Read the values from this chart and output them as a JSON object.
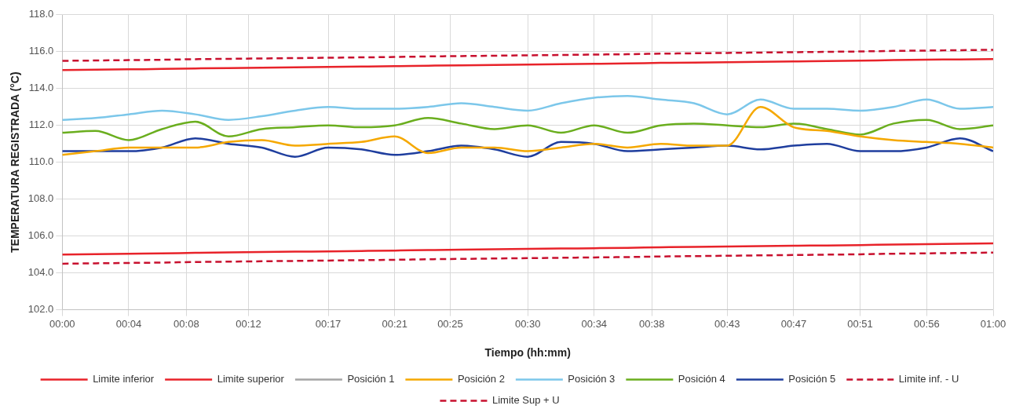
{
  "chart_data": {
    "type": "line",
    "xlabel": "Tiempo (hh:mm)",
    "ylabel": "TEMPERATURA REGISTRADA (°C)",
    "x": [
      0,
      0.0357,
      0.0714,
      0.1071,
      0.1429,
      0.1786,
      0.2143,
      0.25,
      0.2857,
      0.3214,
      0.3571,
      0.3929,
      0.4286,
      0.4643,
      0.5,
      0.5357,
      0.5714,
      0.6071,
      0.6429,
      0.6786,
      0.7143,
      0.75,
      0.7857,
      0.8214,
      0.8571,
      0.8929,
      0.9286,
      0.9643,
      1
    ],
    "series": [
      {
        "name": "Limite inferior",
        "color": "#e8232a",
        "values": [
          105.0,
          105.02,
          105.04,
          105.06,
          105.09,
          105.11,
          105.13,
          105.15,
          105.17,
          105.19,
          105.21,
          105.24,
          105.26,
          105.28,
          105.3,
          105.32,
          105.34,
          105.36,
          105.39,
          105.41,
          105.43,
          105.45,
          105.47,
          105.49,
          105.51,
          105.54,
          105.56,
          105.58,
          105.6
        ]
      },
      {
        "name": "Limite superior",
        "color": "#e8232a",
        "values": [
          115.0,
          115.02,
          115.04,
          115.06,
          115.09,
          115.11,
          115.13,
          115.15,
          115.17,
          115.19,
          115.21,
          115.24,
          115.26,
          115.28,
          115.3,
          115.32,
          115.34,
          115.36,
          115.39,
          115.41,
          115.43,
          115.45,
          115.47,
          115.49,
          115.51,
          115.54,
          115.56,
          115.58,
          115.6
        ]
      },
      {
        "name": "Posición 1",
        "color": "#a5a5a5",
        "values": [
          null,
          null,
          null,
          null,
          null,
          null,
          null,
          null,
          null,
          null,
          null,
          null,
          null,
          null,
          null,
          null,
          null,
          null,
          null,
          null,
          null,
          null,
          null,
          null,
          null,
          null,
          null,
          null,
          null
        ]
      },
      {
        "name": "Posición 2",
        "color": "#f5a800",
        "values": [
          110.4,
          110.6,
          110.8,
          110.8,
          110.8,
          111.1,
          111.2,
          110.9,
          111.0,
          111.1,
          111.4,
          110.5,
          110.8,
          110.8,
          110.6,
          110.8,
          111.0,
          110.8,
          111.0,
          110.9,
          110.9,
          113.0,
          111.9,
          111.7,
          111.4,
          111.2,
          111.1,
          111.0,
          110.8
        ]
      },
      {
        "name": "Posición 3",
        "color": "#7cc7ea",
        "values": [
          112.3,
          112.4,
          112.6,
          112.8,
          112.6,
          112.3,
          112.5,
          112.8,
          113.0,
          112.9,
          112.9,
          113.0,
          113.2,
          113.0,
          112.8,
          113.2,
          113.5,
          113.6,
          113.4,
          113.2,
          112.6,
          113.4,
          112.9,
          112.9,
          112.8,
          113.0,
          113.4,
          112.9,
          113.0
        ]
      },
      {
        "name": "Posición 4",
        "color": "#6aae1e",
        "values": [
          111.6,
          111.7,
          111.2,
          111.8,
          112.2,
          111.4,
          111.8,
          111.9,
          112.0,
          111.9,
          112.0,
          112.4,
          112.1,
          111.8,
          112.0,
          111.6,
          112.0,
          111.6,
          112.0,
          112.1,
          112.0,
          111.9,
          112.1,
          111.8,
          111.5,
          112.1,
          112.3,
          111.8,
          112.0
        ]
      },
      {
        "name": "Posición 5",
        "color": "#1f3e9e",
        "values": [
          110.6,
          110.6,
          110.6,
          110.8,
          111.3,
          111.0,
          110.8,
          110.3,
          110.8,
          110.7,
          110.4,
          110.6,
          110.9,
          110.7,
          110.3,
          111.1,
          111.0,
          110.6,
          110.7,
          110.8,
          110.9,
          110.7,
          110.9,
          111.0,
          110.6,
          110.6,
          110.8,
          111.3,
          110.6
        ]
      },
      {
        "name": "Limite inf. - U",
        "color": "#c8102e",
        "line_style": "dashed",
        "values": [
          104.5,
          104.52,
          104.54,
          104.56,
          104.59,
          104.61,
          104.63,
          104.65,
          104.67,
          104.69,
          104.71,
          104.74,
          104.76,
          104.78,
          104.8,
          104.82,
          104.84,
          104.86,
          104.89,
          104.91,
          104.93,
          104.95,
          104.97,
          104.99,
          105.01,
          105.04,
          105.06,
          105.08,
          105.1
        ]
      },
      {
        "name": "Limite Sup + U",
        "color": "#c8102e",
        "line_style": "dashed",
        "values": [
          115.5,
          115.52,
          115.54,
          115.56,
          115.59,
          115.61,
          115.63,
          115.65,
          115.67,
          115.69,
          115.71,
          115.74,
          115.76,
          115.78,
          115.8,
          115.82,
          115.84,
          115.86,
          115.89,
          115.91,
          115.93,
          115.95,
          115.97,
          115.99,
          116.01,
          116.04,
          116.06,
          116.08,
          116.1
        ]
      }
    ],
    "xlim": [
      0,
      1
    ],
    "xticks": [
      {
        "value": 0,
        "label": "00:00"
      },
      {
        "value": 0.0714,
        "label": "00:04"
      },
      {
        "value": 0.1333,
        "label": "00:08"
      },
      {
        "value": 0.2,
        "label": "00:12"
      },
      {
        "value": 0.2857,
        "label": "00:17"
      },
      {
        "value": 0.3571,
        "label": "00:21"
      },
      {
        "value": 0.4167,
        "label": "00:25"
      },
      {
        "value": 0.5,
        "label": "00:30"
      },
      {
        "value": 0.5714,
        "label": "00:34"
      },
      {
        "value": 0.6333,
        "label": "00:38"
      },
      {
        "value": 0.7143,
        "label": "00:43"
      },
      {
        "value": 0.7857,
        "label": "00:47"
      },
      {
        "value": 0.8571,
        "label": "00:51"
      },
      {
        "value": 0.9286,
        "label": "00:56"
      },
      {
        "value": 1,
        "label": "01:00"
      }
    ],
    "ylim": [
      102,
      118
    ],
    "yticks": [
      {
        "value": 102,
        "label": "102.0"
      },
      {
        "value": 104,
        "label": "104.0"
      },
      {
        "value": 106,
        "label": "106.0"
      },
      {
        "value": 108,
        "label": "108.0"
      },
      {
        "value": 110,
        "label": "110.0"
      },
      {
        "value": 112,
        "label": "112.0"
      },
      {
        "value": 114,
        "label": "114.0"
      },
      {
        "value": 116,
        "label": "116.0"
      },
      {
        "value": 118,
        "label": "118.0"
      }
    ],
    "grid": true,
    "legend": "bottom",
    "marker": "none",
    "line_style": "solid"
  }
}
